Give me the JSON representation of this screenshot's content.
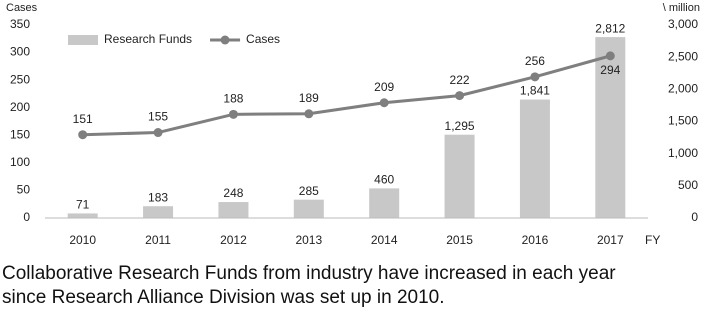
{
  "chart_data": {
    "type": "combo",
    "y_label": "Cases",
    "y2_label": "\\ million",
    "x_label": "FY",
    "categories": [
      "2010",
      "2011",
      "2012",
      "2013",
      "2014",
      "2015",
      "2016",
      "2017"
    ],
    "series": [
      {
        "name": "Research Funds",
        "type": "bar",
        "axis": "y2",
        "color": "#c8c8c8",
        "values": [
          71,
          183,
          248,
          285,
          460,
          1295,
          1841,
          2812
        ],
        "value_labels": [
          "71",
          "183",
          "248",
          "285",
          "460",
          "1,295",
          "1,841",
          "2,812"
        ]
      },
      {
        "name": "Cases",
        "type": "line",
        "color": "#7f7f7f",
        "values": [
          151,
          155,
          188,
          189,
          209,
          222,
          256,
          294
        ]
      }
    ],
    "ylim": [
      0,
      350
    ],
    "yticks": [
      0,
      50,
      100,
      150,
      200,
      250,
      300,
      350
    ],
    "y2lim": [
      0,
      3000
    ],
    "y2ticks": [
      0,
      500,
      {
        "value": 1000,
        "label": "1,000"
      },
      {
        "value": 1500,
        "label": "1,500"
      },
      {
        "value": 2000,
        "label": "2,000"
      },
      {
        "value": 2500,
        "label": "2,500"
      },
      {
        "value": 3000,
        "label": "3,000"
      }
    ],
    "legend": "upper left",
    "grid": false,
    "caption": [
      "Collaborative Research Funds from industry have increased in each year",
      "since Research Alliance Division was set up in 2010."
    ]
  }
}
